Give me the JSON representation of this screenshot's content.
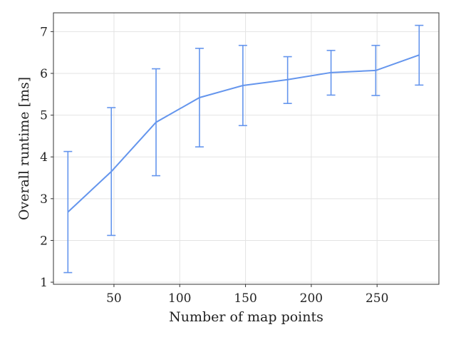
{
  "chart_data": {
    "type": "line",
    "title": "",
    "xlabel": "Number of map points",
    "ylabel": "Overall runtime [ms]",
    "xlim": [
      4,
      297
    ],
    "ylim": [
      0.95,
      7.45
    ],
    "xticks": [
      50,
      100,
      150,
      200,
      250
    ],
    "xtick_labels": [
      "50",
      "100",
      "150",
      "200",
      "250"
    ],
    "yticks": [
      1,
      2,
      3,
      4,
      5,
      6,
      7
    ],
    "ytick_labels": [
      "1",
      "2",
      "3",
      "4",
      "5",
      "6",
      "7"
    ],
    "grid": true,
    "color": "#6495ed",
    "series": [
      {
        "x": [
          15,
          48,
          82,
          115,
          148,
          182,
          215,
          249,
          282
        ],
        "y": [
          2.68,
          3.65,
          4.83,
          5.42,
          5.71,
          5.85,
          6.02,
          6.07,
          6.44
        ],
        "err_low": [
          1.23,
          2.12,
          3.55,
          4.24,
          4.75,
          5.28,
          5.48,
          5.47,
          5.72
        ],
        "err_high": [
          4.13,
          5.18,
          6.11,
          6.6,
          6.67,
          6.4,
          6.55,
          6.67,
          7.15
        ]
      }
    ]
  }
}
